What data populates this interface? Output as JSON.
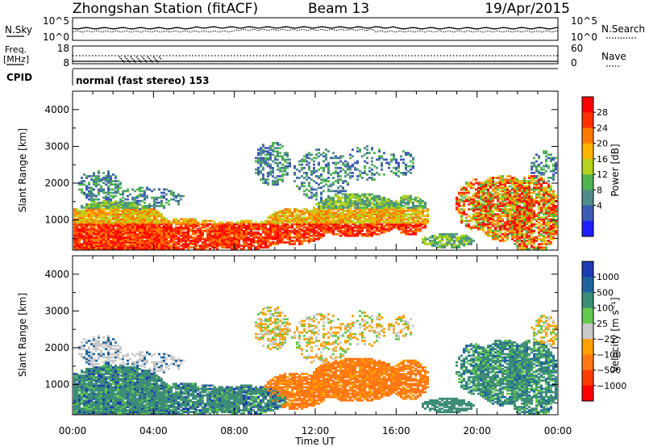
{
  "header": {
    "station": "Zhongshan Station (fitACF)",
    "beam": "Beam 13",
    "date": "19/Apr/2015"
  },
  "sky_panel": {
    "left_label": "N.Sky",
    "left_ticks": [
      "10^5",
      "10^0"
    ],
    "right_label": "N.Search",
    "right_ticks": [
      "10^5",
      "10^0"
    ]
  },
  "freq_panel": {
    "left_label_line1": "Freq.",
    "left_label_line2": "[MHz]",
    "left_ticks": [
      "18",
      "8"
    ],
    "right_label": "Nave",
    "right_ticks": [
      "60",
      "0"
    ]
  },
  "cpid": {
    "label": "CPID",
    "value": "normal (fast stereo) 153"
  },
  "chart_data": [
    {
      "type": "heatmap",
      "ylabel": "Slant Range [km]",
      "xlabel": "Time UT",
      "xlim": [
        "00:00",
        "24:00"
      ],
      "ylim": [
        180,
        4500
      ],
      "x_tick_labels": [
        "00:00",
        "04:00",
        "08:00",
        "12:00",
        "16:00",
        "20:00",
        "00:00"
      ],
      "y_tick_labels": [
        "1000",
        "2000",
        "3000",
        "4000"
      ],
      "colorbar": {
        "label": "Power [dB]",
        "tick_labels": [
          "28",
          "24",
          "20",
          "16",
          "12",
          "8",
          "4"
        ],
        "colors": [
          "#ff0000",
          "#ff3000",
          "#ff7800",
          "#ffb400",
          "#b4d21e",
          "#50b450",
          "#508c8c",
          "#3c5ab4",
          "#1e1eff"
        ]
      }
    },
    {
      "type": "heatmap",
      "ylabel": "Slant Range [km]",
      "xlabel": "Time UT",
      "xlim": [
        "00:00",
        "24:00"
      ],
      "ylim": [
        180,
        4500
      ],
      "x_tick_labels": [
        "00:00",
        "04:00",
        "08:00",
        "12:00",
        "16:00",
        "20:00",
        "00:00"
      ],
      "y_tick_labels": [
        "1000",
        "2000",
        "3000",
        "4000"
      ],
      "colorbar": {
        "label": "Velocity [m s⁻¹]",
        "tick_labels": [
          "1000",
          "500",
          "100",
          "25",
          "−25",
          "−100",
          "−500",
          "−1000"
        ],
        "colors": [
          "#1e3cb4",
          "#1e64a0",
          "#3c8c78",
          "#64c850",
          "#c8c8c8",
          "#ffa000",
          "#ff7814",
          "#ff3c00",
          "#ff0000"
        ]
      }
    }
  ]
}
